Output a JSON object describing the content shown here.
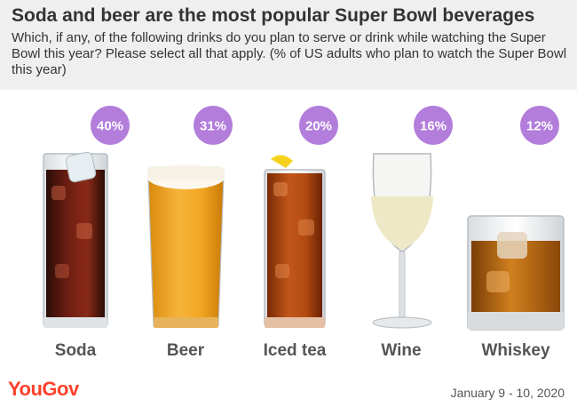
{
  "header": {
    "title": "Soda and beer are the most popular Super Bowl beverages",
    "subtitle": "Which, if any, of the following drinks do you plan to serve or drink while watching the Super Bowl this year? Please select all that apply. (% of US adults who plan to watch the Super Bowl this year)"
  },
  "chart_data": {
    "type": "bar",
    "title": "Soda and beer are the most popular Super Bowl beverages",
    "categories": [
      "Soda",
      "Beer",
      "Iced tea",
      "Wine",
      "Whiskey"
    ],
    "values": [
      40,
      31,
      20,
      16,
      12
    ],
    "value_labels": [
      "40%",
      "31%",
      "20%",
      "16%",
      "12%"
    ],
    "unit": "% of US adults who plan to watch the Super Bowl this year"
  },
  "colors": {
    "badge": "#b27ddb",
    "header_bg": "#efefef",
    "brand": "#ff412c",
    "label_text": "#555555"
  },
  "footer": {
    "brand": "YouGov",
    "date": "January 9 - 10, 2020"
  }
}
